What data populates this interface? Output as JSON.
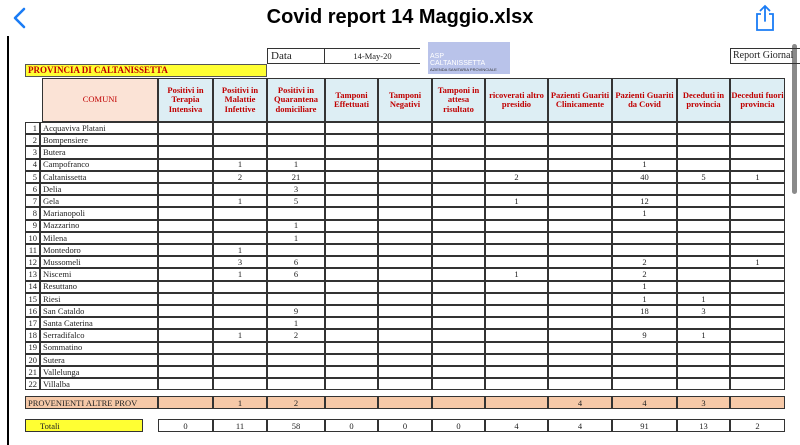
{
  "toolbar": {
    "title": "Covid report 14 Maggio.xlsx"
  },
  "sheet": {
    "date_label": "Data",
    "date": "14-May-20",
    "logo": {
      "name": "ASP CALTANISSETTA",
      "subtitle": "AZIENDA SANITARIA PROVINCIALE"
    },
    "report_label": "Report Giornal",
    "province": "PROVINCIA DI CALTANISSETTA",
    "table": {
      "columns": [
        "COMUNI",
        "Positivi in Terapia Intensiva",
        "Positivi in Malattie Infettive",
        "Positivi in Quarantena domiciliare",
        "Tamponi Effettuati",
        "Tamponi Negativi",
        "Tamponi in attesa risultato",
        "ricoverati altro presidio",
        "Pazienti Guariti Clinicamente",
        "Pazienti Guariti da Covid",
        "Deceduti in provincia",
        "Deceduti fuori provincia"
      ],
      "rows": [
        {
          "n": 1,
          "name": "Acquaviva Platani",
          "values": [
            null,
            null,
            null,
            null,
            null,
            null,
            null,
            null,
            null,
            null,
            null
          ]
        },
        {
          "n": 2,
          "name": "Bompensiere",
          "values": [
            null,
            null,
            null,
            null,
            null,
            null,
            null,
            null,
            null,
            null,
            null
          ]
        },
        {
          "n": 3,
          "name": "Butera",
          "values": [
            null,
            null,
            null,
            null,
            null,
            null,
            null,
            null,
            null,
            null,
            null
          ]
        },
        {
          "n": 4,
          "name": "Campofranco",
          "values": [
            null,
            1,
            1,
            null,
            null,
            null,
            null,
            null,
            1,
            null,
            null
          ]
        },
        {
          "n": 5,
          "name": "Caltanissetta",
          "values": [
            null,
            2,
            21,
            null,
            null,
            null,
            2,
            null,
            40,
            5,
            1
          ]
        },
        {
          "n": 6,
          "name": "Delia",
          "values": [
            null,
            null,
            3,
            null,
            null,
            null,
            null,
            null,
            null,
            null,
            null
          ]
        },
        {
          "n": 7,
          "name": "Gela",
          "values": [
            null,
            1,
            5,
            null,
            null,
            null,
            1,
            null,
            12,
            null,
            null
          ]
        },
        {
          "n": 8,
          "name": "Marianopoli",
          "values": [
            null,
            null,
            null,
            null,
            null,
            null,
            null,
            null,
            1,
            null,
            null
          ]
        },
        {
          "n": 9,
          "name": "Mazzarino",
          "values": [
            null,
            null,
            1,
            null,
            null,
            null,
            null,
            null,
            null,
            null,
            null
          ]
        },
        {
          "n": 10,
          "name": "Milena",
          "values": [
            null,
            null,
            1,
            null,
            null,
            null,
            null,
            null,
            null,
            null,
            null
          ]
        },
        {
          "n": 11,
          "name": "Montedoro",
          "values": [
            null,
            1,
            null,
            null,
            null,
            null,
            null,
            null,
            null,
            null,
            null
          ]
        },
        {
          "n": 12,
          "name": "Mussomeli",
          "values": [
            null,
            3,
            6,
            null,
            null,
            null,
            null,
            null,
            2,
            null,
            1
          ]
        },
        {
          "n": 13,
          "name": "Niscemi",
          "values": [
            null,
            1,
            6,
            null,
            null,
            null,
            1,
            null,
            2,
            null,
            null
          ]
        },
        {
          "n": 14,
          "name": "Resuttano",
          "values": [
            null,
            null,
            null,
            null,
            null,
            null,
            null,
            null,
            1,
            null,
            null
          ]
        },
        {
          "n": 15,
          "name": "Riesi",
          "values": [
            null,
            null,
            null,
            null,
            null,
            null,
            null,
            null,
            1,
            1,
            null
          ]
        },
        {
          "n": 16,
          "name": "San Cataldo",
          "values": [
            null,
            null,
            9,
            null,
            null,
            null,
            null,
            null,
            18,
            3,
            null
          ]
        },
        {
          "n": 17,
          "name": "Santa Caterina",
          "values": [
            null,
            null,
            1,
            null,
            null,
            null,
            null,
            null,
            null,
            null,
            null
          ]
        },
        {
          "n": 18,
          "name": "Serradifalco",
          "values": [
            null,
            1,
            2,
            null,
            null,
            null,
            null,
            null,
            9,
            1,
            null
          ]
        },
        {
          "n": 19,
          "name": "Sommatino",
          "values": [
            null,
            null,
            null,
            null,
            null,
            null,
            null,
            null,
            null,
            null,
            null
          ]
        },
        {
          "n": 20,
          "name": "Sutera",
          "values": [
            null,
            null,
            null,
            null,
            null,
            null,
            null,
            null,
            null,
            null,
            null
          ]
        },
        {
          "n": 21,
          "name": "Vallelunga",
          "values": [
            null,
            null,
            null,
            null,
            null,
            null,
            null,
            null,
            null,
            null,
            null
          ]
        },
        {
          "n": 22,
          "name": "Villalba",
          "values": [
            null,
            null,
            null,
            null,
            null,
            null,
            null,
            null,
            null,
            null,
            null
          ]
        }
      ],
      "other": {
        "name": "PROVENIENTI ALTRE PROV",
        "values": [
          null,
          1,
          2,
          null,
          null,
          null,
          null,
          4,
          4,
          3,
          null
        ]
      },
      "totals": {
        "label": "Totali",
        "values": [
          0,
          11,
          58,
          0,
          0,
          0,
          4,
          4,
          91,
          13,
          2
        ]
      }
    }
  }
}
